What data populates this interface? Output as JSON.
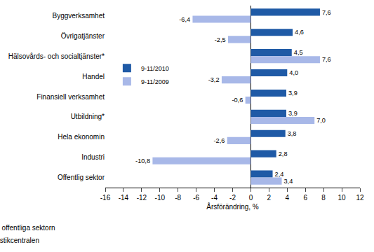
{
  "chart_data": {
    "type": "bar",
    "orientation": "horizontal",
    "categories": [
      "Byggverksamhet",
      "Övrigatjänster",
      "Hälsovårds- och socialtjänster*",
      "Handel",
      "Finansiell verksamhet",
      "Utbildning*",
      "Hela ekonomin",
      "Industri",
      "Offentlig sektor"
    ],
    "series": [
      {
        "name": "9-11/2010",
        "color": "#1f5aa6",
        "values": [
          7.6,
          4.6,
          4.5,
          4.0,
          3.9,
          3.9,
          3.8,
          2.8,
          2.4
        ],
        "value_labels": [
          "7,6",
          "4,6",
          "4,5",
          "4,0",
          "3,9",
          "3,9",
          "3,8",
          "2,8",
          "2,4"
        ]
      },
      {
        "name": "9-11/2009",
        "color": "#a8b8e8",
        "values": [
          -6.4,
          -2.5,
          7.6,
          -3.2,
          -0.6,
          7.0,
          -2.6,
          -10.8,
          3.4
        ],
        "value_labels": [
          "-6,4",
          "-2,5",
          "7,6",
          "-3,2",
          "-0,6",
          "7,0",
          "-2,6",
          "-10,8",
          "3,4"
        ]
      }
    ],
    "x_label": "Årsförändring, %",
    "xlim": [
      -16,
      12
    ],
    "xticks": [
      -16,
      -14,
      -12,
      -10,
      -8,
      -6,
      -4,
      -2,
      0,
      2,
      4,
      6,
      8,
      10,
      12
    ],
    "grid": false,
    "legend": "left",
    "data_labels": true,
    "annotations": [
      "* Exkl. den offentliga sektorn",
      "Källa: Statistikcentralen"
    ]
  }
}
